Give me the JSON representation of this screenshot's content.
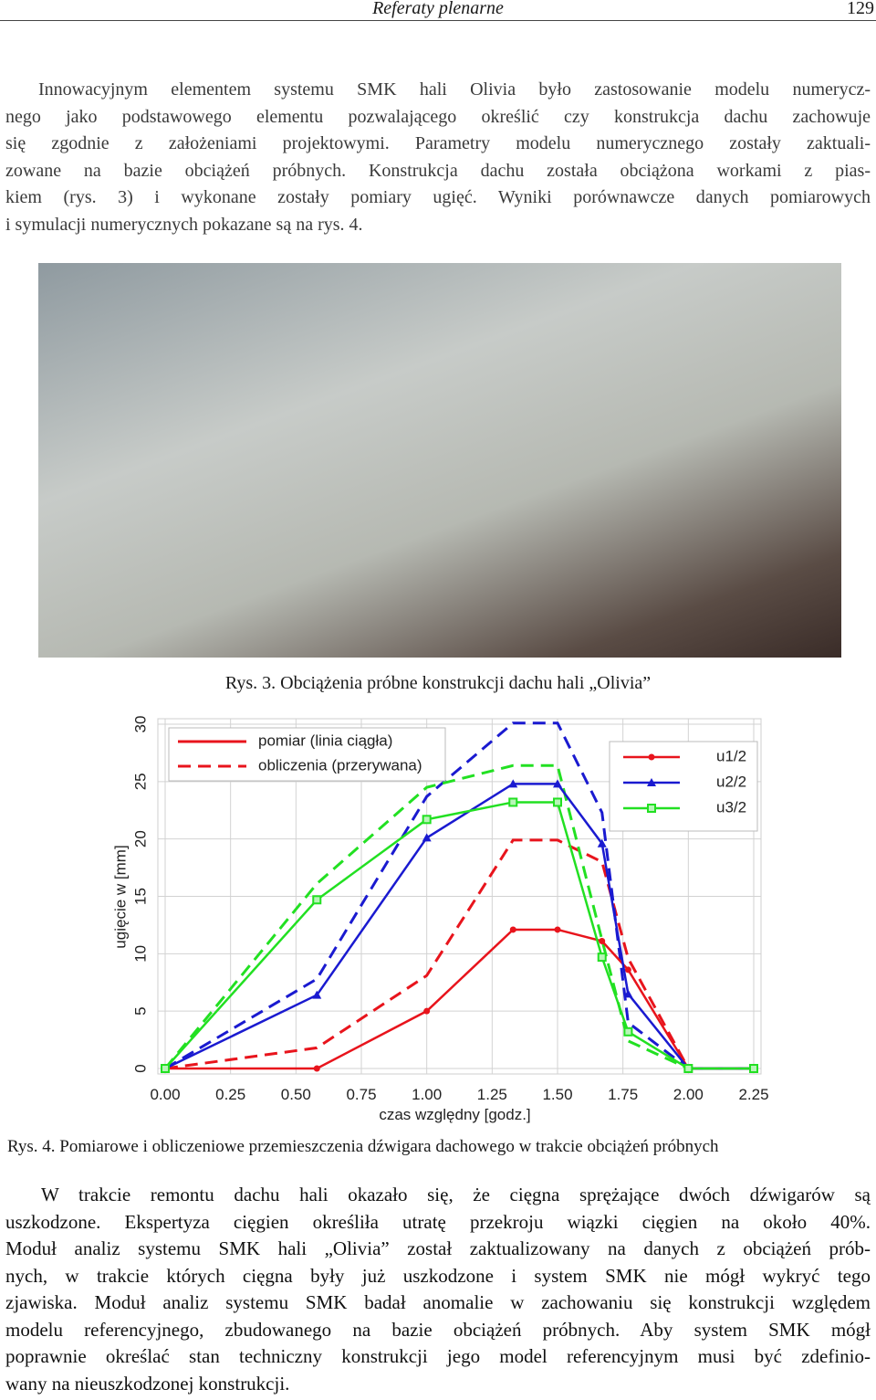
{
  "header": {
    "title": "Referaty plenarne",
    "page": "129"
  },
  "paragraph1": [
    "Innowacyjnym elementem systemu SMK hali Olivia było zastosowanie modelu numerycz-",
    "nego jako podstawowego elementu pozwalającego określić czy konstrukcja dachu zachowuje",
    "się zgodnie z założeniami projektowymi. Parametry modelu numerycznego zostały zaktuali-",
    "zowane na bazie obciążeń próbnych. Konstrukcja dachu została obciążona workami z pias-",
    "kiem (rys. 3) i wykonane zostały pomiary ugięć. Wyniki porównawcze danych pomiarowych",
    "i symulacji numerycznych pokazane są na rys. 4."
  ],
  "figure3_caption": "Rys. 3. Obciążenia próbne konstrukcji dachu hali „Olivia”",
  "chart_data": {
    "type": "line",
    "xlabel": "czas względny [godz.]",
    "ylabel": "ugięcie w [mm]",
    "x": [
      0,
      0.58,
      1.0,
      1.33,
      1.5,
      1.67,
      1.77,
      2.0,
      2.25
    ],
    "xlim": [
      0,
      2.25
    ],
    "ylim": [
      0,
      30
    ],
    "xticks": [
      {
        "value": 0,
        "label": "0.00"
      },
      {
        "value": 0.25,
        "label": "0.25"
      },
      {
        "value": 0.5,
        "label": "0.50"
      },
      {
        "value": 0.75,
        "label": "0.75"
      },
      {
        "value": 1,
        "label": "1.00"
      },
      {
        "value": 1.25,
        "label": "1.25"
      },
      {
        "value": 1.5,
        "label": "1.50"
      },
      {
        "value": 1.75,
        "label": "1.75"
      },
      {
        "value": 2,
        "label": "2.00"
      },
      {
        "value": 2.25,
        "label": "2.25"
      }
    ],
    "yticks": [
      0,
      5,
      10,
      15,
      20,
      25,
      30
    ],
    "grid": true,
    "style_legend": [
      {
        "label": "pomiar (linia ciągła)",
        "dashed": false
      },
      {
        "label": "obliczenia (przerywana)",
        "dashed": true
      }
    ],
    "series": [
      {
        "name": "u1/2",
        "color": "#e8141c",
        "marker": "circle",
        "values": [
          0,
          0,
          5.0,
          12.1,
          12.1,
          11.1,
          8.6,
          0,
          0
        ],
        "calc_values": [
          0,
          1.8,
          8.1,
          19.9,
          19.9,
          18.0,
          9.6,
          0,
          0
        ]
      },
      {
        "name": "u2/2",
        "color": "#1a1ad0",
        "marker": "triangle",
        "values": [
          0,
          6.4,
          20.1,
          24.8,
          24.8,
          19.6,
          6.5,
          0,
          0
        ],
        "calc_values": [
          0,
          7.8,
          23.7,
          30.1,
          30.1,
          22.3,
          4.0,
          0,
          0
        ]
      },
      {
        "name": "u3/2",
        "color": "#22e022",
        "marker": "square",
        "values": [
          0,
          14.7,
          21.7,
          23.2,
          23.2,
          9.7,
          3.2,
          0,
          0
        ],
        "calc_values": [
          0,
          16.1,
          24.5,
          26.4,
          26.4,
          11.2,
          2.4,
          0,
          0
        ]
      }
    ]
  },
  "figure4_caption": "Rys. 4. Pomiarowe i obliczeniowe przemieszczenia dźwigara dachowego w trakcie obciążeń próbnych",
  "paragraph2": [
    "W trakcie remontu dachu hali okazało się, że cięgna sprężające dwóch dźwigarów są",
    "uszkodzone. Ekspertyza cięgien określiła utratę przekroju wiązki cięgien na około 40%.",
    "Moduł analiz systemu SMK hali „Olivia” został zaktualizowany na danych z obciążeń prób-",
    "nych, w trakcie których cięgna były już uszkodzone i system SMK nie mógł wykryć tego",
    "zjawiska. Moduł analiz systemu SMK badał anomalie w zachowaniu się konstrukcji względem",
    "modelu referencyjnego, zbudowanego na bazie obciążeń próbnych. Aby system SMK mógł",
    "poprawnie określać stan techniczny konstrukcji jego model referencyjnym musi być zdefinio-",
    "wany na nieuszkodzonej konstrukcji."
  ]
}
